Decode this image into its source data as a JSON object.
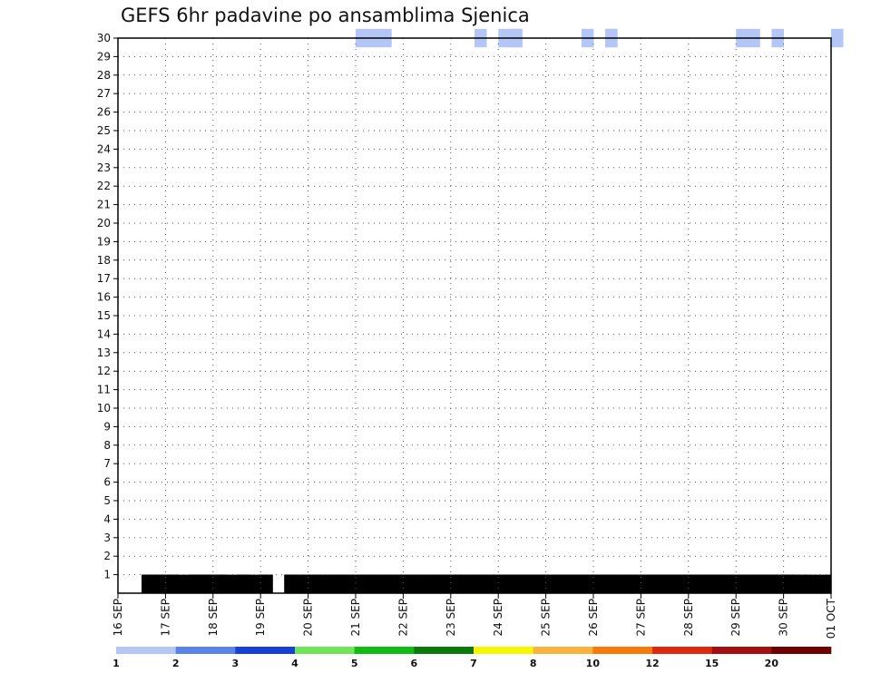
{
  "chart_data": {
    "type": "heatmap",
    "title": "GEFS 6hr padavine po ansamblima Sjenica",
    "x_ticks": [
      "16 SEP",
      "17 SEP",
      "18 SEP",
      "19 SEP",
      "20 SEP",
      "21 SEP",
      "22 SEP",
      "23 SEP",
      "24 SEP",
      "25 SEP",
      "26 SEP",
      "27 SEP",
      "28 SEP",
      "29 SEP",
      "30 SEP",
      "01 OCT"
    ],
    "x_range": [
      "2025-09-16 00Z",
      "2025-10-01 00Z"
    ],
    "x_step_hours": 6,
    "y_ticks": [
      "1",
      "2",
      "3",
      "4",
      "5",
      "6",
      "7",
      "8",
      "9",
      "10",
      "11",
      "12",
      "13",
      "14",
      "15",
      "16",
      "17",
      "18",
      "19",
      "20",
      "21",
      "22",
      "23",
      "24",
      "25",
      "26",
      "27",
      "28",
      "29",
      "30"
    ],
    "y_range": [
      0,
      30
    ],
    "grid": true,
    "colorbar": {
      "labels": [
        "1",
        "2",
        "3",
        "4",
        "5",
        "6",
        "7",
        "8",
        "10",
        "12",
        "15",
        "20"
      ],
      "colors": [
        "#b3c6f5",
        "#5a82eb",
        "#1740d9",
        "#6ee658",
        "#11bb11",
        "#0a7a0a",
        "#f6f600",
        "#fbb13d",
        "#f6790c",
        "#de2a0f",
        "#a50e0e",
        "#6e0000"
      ]
    },
    "cells": [
      [
        30,
        -1,
        20
      ],
      [
        30,
        -1,
        21
      ],
      [
        30,
        -1,
        22
      ],
      [
        30,
        -1,
        30
      ],
      [
        30,
        -1,
        32
      ],
      [
        30,
        -1,
        33
      ],
      [
        30,
        -1,
        33
      ],
      [
        30,
        -1,
        39
      ],
      [
        30,
        -1,
        41
      ],
      [
        30,
        -1,
        41
      ],
      [
        30,
        -1,
        52
      ],
      [
        30,
        -1,
        53
      ],
      [
        30,
        -1,
        55
      ],
      [
        30,
        -1,
        60
      ],
      [
        0,
        6,
        2
      ],
      [
        0,
        6,
        3
      ],
      [
        0,
        6,
        22
      ],
      [
        0,
        6,
        23
      ],
      [
        0,
        6,
        24
      ],
      [
        0,
        6,
        25
      ],
      [
        0,
        6,
        27
      ],
      [
        0,
        6,
        28
      ],
      [
        0,
        6,
        32
      ],
      [
        0,
        6,
        33
      ],
      [
        0,
        6,
        37
      ],
      [
        0,
        6,
        38
      ],
      [
        0,
        6,
        40
      ],
      [
        0,
        6,
        41
      ],
      [
        0,
        6,
        42
      ],
      [
        0,
        6,
        51
      ],
      [
        0,
        6,
        55
      ],
      [
        0,
        9,
        3
      ],
      [
        0,
        9,
        34
      ],
      [
        0,
        9,
        35
      ],
      [
        0,
        9,
        36
      ],
      [
        0,
        9,
        37
      ],
      [
        0,
        9,
        38
      ],
      [
        0,
        9,
        40
      ],
      [
        0,
        9,
        41
      ],
      [
        0,
        9,
        42
      ],
      [
        0,
        9,
        44
      ],
      [
        0,
        9,
        45
      ],
      [
        0,
        9,
        47
      ],
      [
        0,
        9,
        48
      ],
      [
        0,
        9,
        50
      ],
      [
        0,
        9,
        51
      ],
      [
        0,
        9,
        52
      ],
      [
        0,
        9,
        53
      ],
      [
        0,
        9,
        54
      ],
      [
        0,
        9,
        57
      ],
      [
        0,
        12,
        2
      ],
      [
        0,
        12,
        3
      ],
      [
        0,
        12,
        6
      ],
      [
        0,
        12,
        7
      ],
      [
        0,
        12,
        10
      ],
      [
        0,
        12,
        15
      ],
      [
        0,
        12,
        16
      ],
      [
        0,
        12,
        17
      ],
      [
        0,
        12,
        23
      ],
      [
        0,
        12,
        24
      ],
      [
        0,
        12,
        25
      ],
      [
        0,
        12,
        26
      ],
      [
        0,
        12,
        27
      ],
      [
        0,
        12,
        29
      ],
      [
        0,
        12,
        35
      ],
      [
        0,
        12,
        36
      ],
      [
        0,
        12,
        37
      ],
      [
        0,
        12,
        38
      ],
      [
        0,
        12,
        39
      ],
      [
        0,
        12,
        40
      ],
      [
        0,
        12,
        41
      ],
      [
        0,
        12,
        42
      ],
      [
        0,
        12,
        43
      ],
      [
        0,
        12,
        44
      ],
      [
        0,
        12,
        45
      ],
      [
        0,
        12,
        46
      ],
      [
        0,
        12,
        48
      ],
      [
        0,
        12,
        49
      ],
      [
        0,
        12,
        50
      ],
      [
        0,
        12,
        52
      ],
      [
        0,
        12,
        53
      ],
      [
        0,
        12,
        54
      ],
      [
        0,
        12,
        55
      ],
      [
        0,
        12,
        56
      ],
      [
        0,
        15,
        4
      ],
      [
        0,
        15,
        14
      ],
      [
        0,
        15,
        15
      ],
      [
        0,
        15,
        16
      ],
      [
        0,
        15,
        18
      ],
      [
        0,
        15,
        20
      ],
      [
        0,
        15,
        21
      ],
      [
        0,
        15,
        22
      ],
      [
        0,
        15,
        23
      ],
      [
        0,
        15,
        28
      ],
      [
        0,
        15,
        29
      ],
      [
        0,
        15,
        30
      ],
      [
        0,
        15,
        32
      ],
      [
        0,
        15,
        33
      ],
      [
        0,
        15,
        36
      ],
      [
        0,
        15,
        37
      ],
      [
        0,
        15,
        38
      ],
      [
        0,
        15,
        39
      ],
      [
        0,
        15,
        40
      ],
      [
        0,
        15,
        41
      ],
      [
        0,
        15,
        44
      ],
      [
        0,
        15,
        45
      ],
      [
        0,
        15,
        46
      ],
      [
        0,
        15,
        49
      ],
      [
        0,
        15,
        55
      ],
      [
        0,
        15,
        56
      ],
      [
        0,
        18,
        2
      ],
      [
        0,
        18,
        4
      ],
      [
        0,
        18,
        6
      ],
      [
        0,
        18,
        8
      ],
      [
        0,
        18,
        10
      ],
      [
        0,
        18,
        12
      ],
      [
        0,
        18,
        14
      ],
      [
        0,
        18,
        16
      ],
      [
        0,
        18,
        18
      ],
      [
        0,
        18,
        20
      ],
      [
        0,
        18,
        21
      ],
      [
        0,
        18,
        23
      ],
      [
        0,
        18,
        27
      ],
      [
        0,
        18,
        28
      ],
      [
        0,
        18,
        29
      ],
      [
        0,
        18,
        30
      ],
      [
        0,
        18,
        31
      ],
      [
        0,
        18,
        33
      ],
      [
        0,
        18,
        35
      ],
      [
        0,
        18,
        36
      ],
      [
        0,
        18,
        37
      ],
      [
        0,
        18,
        39
      ],
      [
        0,
        18,
        41
      ],
      [
        0,
        18,
        43
      ],
      [
        0,
        18,
        46
      ],
      [
        0,
        18,
        47
      ],
      [
        0,
        18,
        48
      ],
      [
        0,
        18,
        49
      ],
      [
        0,
        18,
        50
      ],
      [
        0,
        18,
        51
      ],
      [
        0,
        18,
        52
      ],
      [
        0,
        18,
        53
      ],
      [
        0,
        18,
        54
      ],
      [
        0,
        18,
        55
      ],
      [
        0,
        18,
        56
      ],
      [
        0,
        18,
        57
      ],
      [
        0,
        18,
        58
      ],
      [
        0,
        18,
        59
      ],
      [
        0,
        21,
        3
      ],
      [
        0,
        21,
        4
      ],
      [
        0,
        21,
        6
      ],
      [
        0,
        21,
        7
      ],
      [
        0,
        21,
        8
      ],
      [
        0,
        21,
        14
      ],
      [
        0,
        21,
        19
      ],
      [
        0,
        21,
        20
      ],
      [
        0,
        21,
        21
      ],
      [
        0,
        21,
        22
      ],
      [
        0,
        21,
        24
      ],
      [
        0,
        21,
        25
      ],
      [
        0,
        21,
        26
      ],
      [
        0,
        21,
        27
      ],
      [
        0,
        21,
        28
      ],
      [
        0,
        21,
        29
      ],
      [
        0,
        21,
        30
      ],
      [
        0,
        21,
        32
      ],
      [
        0,
        21,
        33
      ],
      [
        0,
        21,
        34
      ],
      [
        0,
        21,
        35
      ],
      [
        0,
        21,
        36
      ],
      [
        0,
        21,
        37
      ],
      [
        0,
        21,
        38
      ],
      [
        0,
        21,
        40
      ],
      [
        0,
        21,
        41
      ],
      [
        0,
        21,
        42
      ],
      [
        0,
        21,
        43
      ],
      [
        0,
        21,
        44
      ],
      [
        0,
        21,
        45
      ],
      [
        0,
        21,
        46
      ],
      [
        0,
        21,
        47
      ],
      [
        0,
        21,
        48
      ],
      [
        0,
        21,
        49
      ],
      [
        0,
        21,
        50
      ],
      [
        0,
        21,
        53
      ],
      [
        0,
        21,
        54
      ],
      [
        0,
        21,
        55
      ],
      [
        0,
        21,
        56
      ],
      [
        0,
        24,
        2
      ],
      [
        0,
        24,
        3
      ],
      [
        0,
        24,
        4
      ],
      [
        0,
        24,
        5
      ],
      [
        0,
        24,
        6
      ],
      [
        0,
        24,
        7
      ],
      [
        0,
        24,
        8
      ],
      [
        0,
        24,
        9
      ],
      [
        0,
        24,
        11
      ],
      [
        0,
        24,
        12
      ],
      [
        0,
        24,
        14
      ],
      [
        0,
        24,
        16
      ],
      [
        0,
        24,
        17
      ],
      [
        0,
        24,
        18
      ],
      [
        0,
        24,
        19
      ],
      [
        0,
        24,
        20
      ],
      [
        0,
        24,
        21
      ],
      [
        0,
        24,
        22
      ],
      [
        0,
        24,
        23
      ],
      [
        0,
        24,
        24
      ],
      [
        0,
        24,
        26
      ],
      [
        0,
        24,
        27
      ],
      [
        0,
        24,
        28
      ],
      [
        0,
        24,
        29
      ],
      [
        0,
        24,
        31
      ],
      [
        0,
        24,
        32
      ],
      [
        0,
        24,
        33
      ],
      [
        0,
        24,
        34
      ],
      [
        0,
        24,
        36
      ],
      [
        0,
        24,
        37
      ],
      [
        0,
        24,
        38
      ],
      [
        0,
        24,
        39
      ],
      [
        0,
        24,
        40
      ],
      [
        0,
        24,
        41
      ],
      [
        0,
        24,
        42
      ],
      [
        0,
        24,
        43
      ],
      [
        0,
        24,
        44
      ],
      [
        0,
        24,
        46
      ],
      [
        0,
        24,
        47
      ],
      [
        0,
        24,
        48
      ],
      [
        0,
        24,
        50
      ],
      [
        0,
        24,
        51
      ],
      [
        0,
        24,
        52
      ],
      [
        0,
        24,
        53
      ],
      [
        0,
        24,
        54
      ],
      [
        0,
        24,
        55
      ],
      [
        0,
        24,
        56
      ]
    ]
  }
}
